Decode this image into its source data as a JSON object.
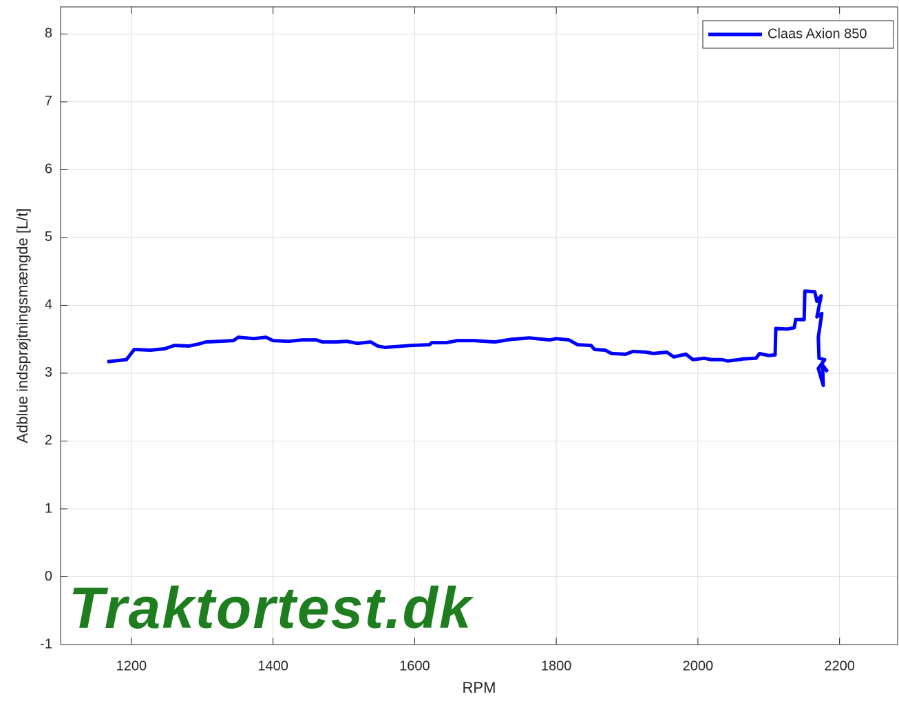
{
  "chart_data": {
    "type": "line",
    "xlabel": "RPM",
    "ylabel": "Adblue indsprøjtningsmængde [L/t]",
    "watermark": "Traktortest.dk",
    "x": [
      1166,
      1193,
      1204,
      1227,
      1247,
      1261,
      1281,
      1295,
      1305,
      1344,
      1351,
      1373,
      1390,
      1400,
      1422,
      1441,
      1461,
      1470,
      1490,
      1504,
      1519,
      1538,
      1548,
      1558,
      1596,
      1621,
      1624,
      1645,
      1660,
      1684,
      1713,
      1737,
      1762,
      1791,
      1800,
      1818,
      1830,
      1849,
      1854,
      1869,
      1878,
      1898,
      1908,
      1927,
      1937,
      1956,
      1966,
      1983,
      1993,
      2009,
      2019,
      2034,
      2042,
      2058,
      2063,
      2082,
      2087,
      2100,
      2109,
      2110,
      2126,
      2136,
      2138,
      2150,
      2151,
      2165,
      2168,
      2174,
      2168,
      2175,
      2170,
      2171,
      2179,
      2170,
      2177,
      2176,
      2183
    ],
    "series": [
      {
        "name": "Claas Axion 850",
        "color": "#0000ff",
        "values": [
          3.17,
          3.2,
          3.35,
          3.34,
          3.36,
          3.41,
          3.4,
          3.43,
          3.46,
          3.48,
          3.53,
          3.51,
          3.53,
          3.48,
          3.47,
          3.49,
          3.49,
          3.46,
          3.46,
          3.47,
          3.44,
          3.46,
          3.4,
          3.38,
          3.41,
          3.42,
          3.45,
          3.45,
          3.48,
          3.48,
          3.46,
          3.5,
          3.52,
          3.49,
          3.51,
          3.49,
          3.42,
          3.41,
          3.35,
          3.34,
          3.29,
          3.28,
          3.32,
          3.31,
          3.29,
          3.31,
          3.24,
          3.28,
          3.2,
          3.22,
          3.2,
          3.2,
          3.18,
          3.2,
          3.21,
          3.22,
          3.29,
          3.26,
          3.27,
          3.66,
          3.65,
          3.67,
          3.79,
          3.79,
          4.21,
          4.2,
          4.06,
          4.14,
          3.83,
          3.88,
          3.53,
          3.22,
          3.2,
          3.07,
          2.82,
          3.12,
          3.02
        ]
      }
    ],
    "xlim": [
      1100,
      2282
    ],
    "xticks": [
      1200,
      1400,
      1600,
      1800,
      2000,
      2200
    ],
    "ylim": [
      -1,
      8.4
    ],
    "yticks": [
      -1,
      0,
      1,
      2,
      3,
      4,
      5,
      6,
      7,
      8
    ],
    "grid": true,
    "legend": "top-right"
  }
}
